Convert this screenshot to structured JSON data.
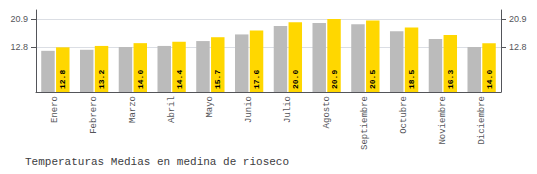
{
  "chart_data": {
    "type": "bar",
    "title": "Temperaturas Medias en medina de rioseco",
    "categories": [
      "Enero",
      "Febrero",
      "Marzo",
      "Abril",
      "Mayo",
      "Junio",
      "Julio",
      "Agosto",
      "Septiembre",
      "Octubre",
      "Noviembre",
      "Diciembre"
    ],
    "series": [
      {
        "color": "#BBBBBB",
        "values": [
          11.8,
          12.1,
          12.9,
          13.2,
          14.6,
          16.5,
          18.9,
          19.8,
          19.4,
          17.4,
          15.2,
          12.9
        ]
      },
      {
        "color": "#FFD700",
        "values": [
          12.8,
          13.2,
          14.0,
          14.4,
          15.7,
          17.6,
          20.0,
          20.9,
          20.5,
          18.5,
          16.3,
          14.0
        ],
        "data_labels": true,
        "value_labels": [
          "12.8",
          "13.2",
          "14.0",
          "14.4",
          "15.7",
          "17.6",
          "20.0",
          "20.9",
          "20.5",
          "18.5",
          "16.3",
          "14.0"
        ]
      }
    ],
    "ylim": [
      0,
      23.5
    ],
    "yticks": [
      12.8,
      20.9
    ],
    "y2lim": [
      0,
      23.5
    ],
    "y2ticks": [
      12.8,
      20.9
    ],
    "grid": true
  }
}
